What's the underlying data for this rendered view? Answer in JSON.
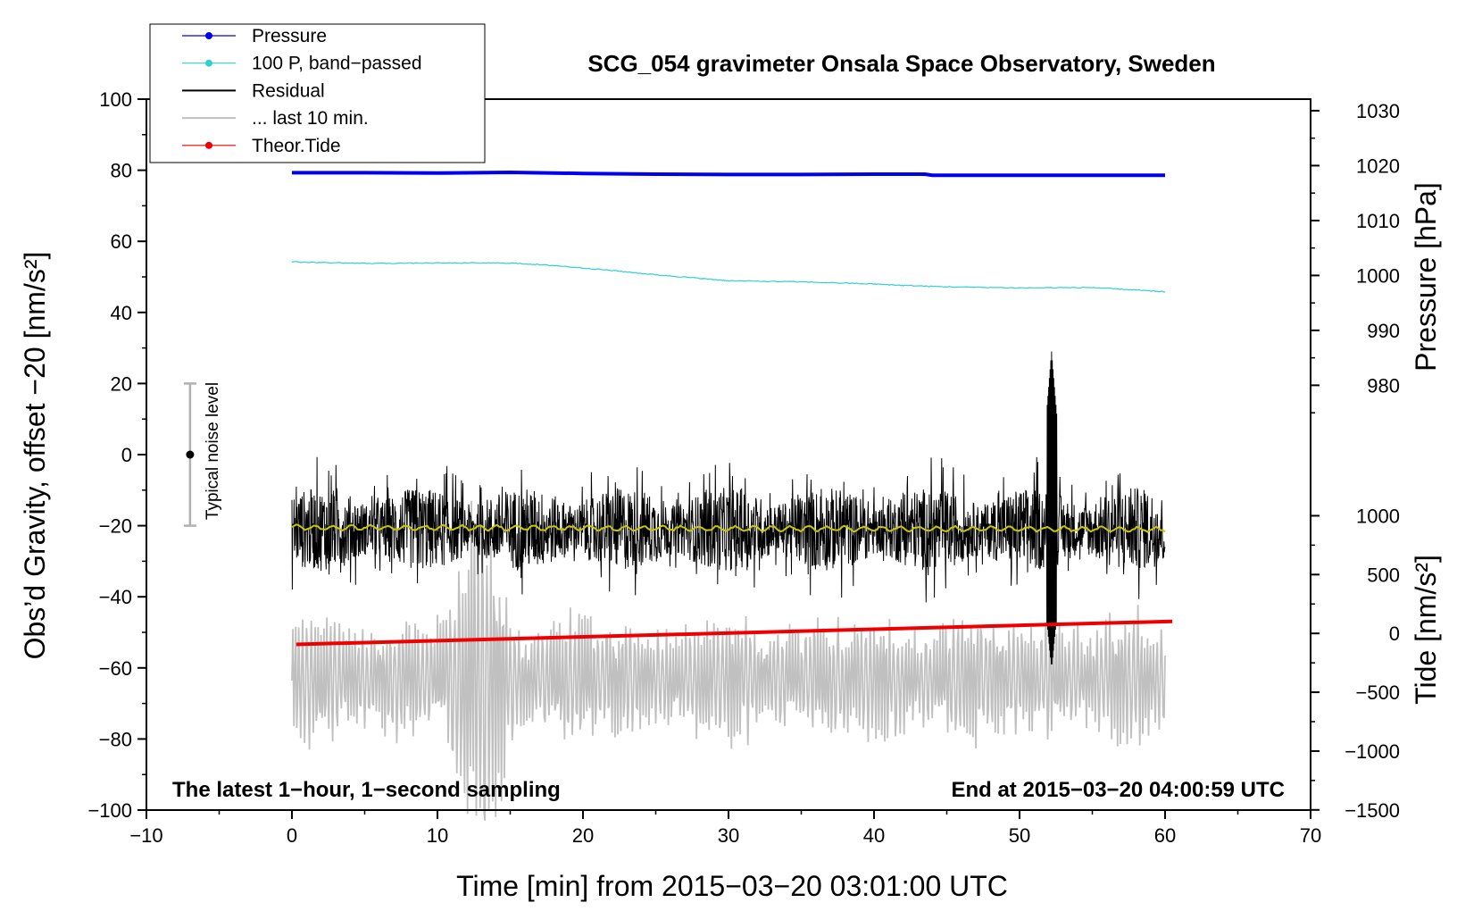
{
  "chart_data": {
    "type": "line",
    "title": "SCG_054 gravimeter Onsala Space Observatory, Sweden",
    "xlabel": "Time [min] from 2015−03−20 03:01:00 UTC",
    "ylabel_left": "Obs’d Gravity, offset −20 [nm/s²]",
    "ylabel_right_top": "Pressure [hPa]",
    "ylabel_right_bottom": "Tide [nm/s²]",
    "xlim": [
      -10,
      70
    ],
    "ylim_left": [
      -100,
      100
    ],
    "x_ticks": [
      -10,
      0,
      10,
      20,
      30,
      40,
      50,
      60,
      70
    ],
    "x_tick_labels": [
      "−10",
      "0",
      "10",
      "20",
      "30",
      "40",
      "50",
      "60",
      "70"
    ],
    "y_ticks_left": [
      100,
      80,
      60,
      40,
      20,
      0,
      -20,
      -40,
      -60,
      -80,
      -100
    ],
    "y_tick_labels_left": [
      "100",
      "80",
      "60",
      "40",
      "20",
      "0",
      "−20",
      "−40",
      "−60",
      "−80",
      "−100"
    ],
    "pressure_ticks": [
      {
        "value": 1030,
        "label": "1030"
      },
      {
        "value": 1020,
        "label": "1020"
      },
      {
        "value": 1010,
        "label": "1010"
      },
      {
        "value": 1000,
        "label": "1000"
      },
      {
        "value": 990,
        "label": "990"
      },
      {
        "value": 980,
        "label": "980"
      }
    ],
    "pressure_axis": {
      "ref_value": 1020,
      "ref_left_y": 81.3,
      "left_units_per_hpa": 1.545
    },
    "tide_ticks": [
      {
        "value": 1000,
        "label": "1000"
      },
      {
        "value": 500,
        "label": "500"
      },
      {
        "value": 0,
        "label": "0"
      },
      {
        "value": -500,
        "label": "−500"
      },
      {
        "value": -1000,
        "label": "−1000"
      },
      {
        "value": -1500,
        "label": "−1500"
      }
    ],
    "tide_axis": {
      "ref_value": 0,
      "ref_left_y": -50.3,
      "left_units_per_nms2": 0.0331
    },
    "legend": [
      {
        "label": "Pressure",
        "color": "#0000ee",
        "marker": true
      },
      {
        "label": "100 P, band−passed",
        "color": "#30d0d0",
        "marker": true
      },
      {
        "label": "Residual",
        "color": "#000000",
        "marker": false
      },
      {
        "label": "... last 10 min.",
        "color": "#c0c0c0",
        "marker": false
      },
      {
        "label": "Theor.Tide",
        "color": "#ee0000",
        "marker": true
      }
    ],
    "series": [
      {
        "name": "Pressure",
        "color": "#0000ee",
        "x": [
          0,
          5,
          10,
          15,
          20,
          25,
          30,
          35,
          40,
          43.5,
          44,
          50,
          55,
          60
        ],
        "y": [
          79.3,
          79.3,
          79.2,
          79.4,
          79.1,
          78.9,
          78.8,
          78.8,
          78.9,
          78.9,
          78.6,
          78.6,
          78.6,
          78.6
        ]
      },
      {
        "name": "100 P, band−passed",
        "color": "#30d0d0",
        "x": [
          0,
          5,
          10,
          15,
          18,
          22,
          25,
          28,
          30,
          35,
          40,
          42,
          45,
          50,
          55,
          58,
          60
        ],
        "y": [
          54.2,
          53.8,
          53.9,
          53.9,
          53.2,
          51.8,
          50.6,
          49.6,
          48.9,
          48.6,
          48.0,
          47.6,
          47.2,
          46.9,
          47.0,
          46.3,
          45.8
        ]
      },
      {
        "name": "Theor.Tide",
        "color": "#ee0000",
        "x": [
          0.3,
          60.5
        ],
        "y": [
          -53.4,
          -46.9
        ]
      },
      {
        "name": "Residual",
        "color": "#000000",
        "center": -21.0,
        "amplitude": 13,
        "x_range": [
          0,
          60
        ],
        "burst": {
          "x": 52.2,
          "min": -60,
          "max": 29
        }
      },
      {
        "name": "Residual (smoothed)",
        "color": "#c8c800",
        "x": [
          0,
          60
        ],
        "y": [
          -20.5,
          -21.0
        ]
      },
      {
        "name": "... last 10 min.",
        "color": "#c0c0c0",
        "center": -63,
        "amplitude": 13,
        "x_range": [
          0,
          60
        ],
        "burst": {
          "x": 13,
          "min": -105,
          "max": -28
        }
      }
    ],
    "noise_bar": {
      "label": "Typical noise level",
      "x": -7,
      "center": 0,
      "half_range": 20
    },
    "annotations": {
      "left": "The latest 1−hour, 1−second sampling",
      "right": "End at 2015−03−20 04:00:59 UTC"
    }
  }
}
